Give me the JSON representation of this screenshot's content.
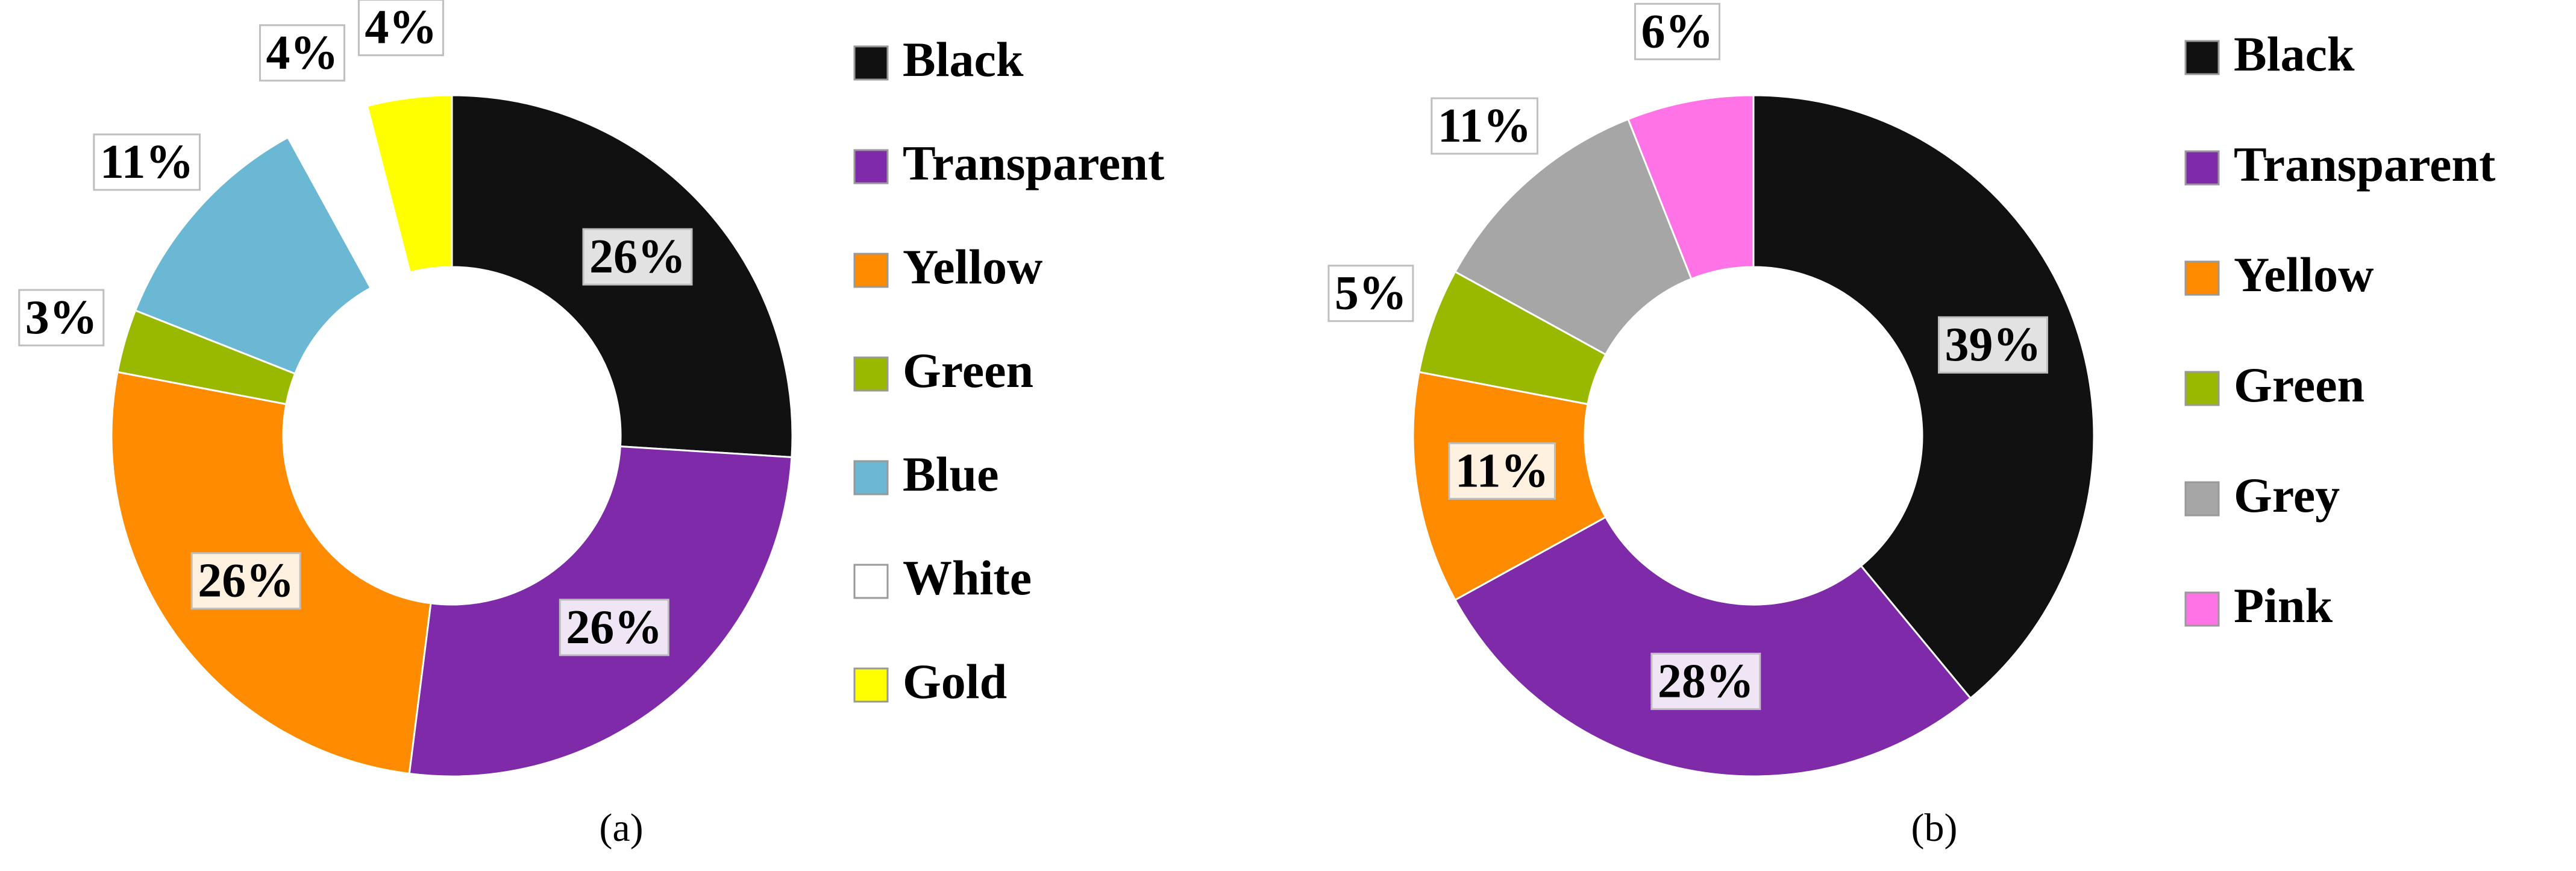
{
  "chart_data": [
    {
      "type": "pie",
      "donut": true,
      "caption": "(a)",
      "categories": [
        "Black",
        "Transparent",
        "Yellow",
        "Green",
        "Blue",
        "White",
        "Gold"
      ],
      "values": [
        26,
        26,
        26,
        3,
        11,
        4,
        4
      ],
      "value_labels": [
        "26%",
        "26%",
        "26%",
        "3%",
        "11%",
        "4%",
        "4%"
      ],
      "colors": [
        "#111111",
        "#7f2aa8",
        "#ff8c00",
        "#99b800",
        "#6bb8d4",
        "#ffffff",
        "#ffff00"
      ]
    },
    {
      "type": "pie",
      "donut": true,
      "caption": "(b)",
      "categories": [
        "Black",
        "Transparent",
        "Yellow",
        "Green",
        "Grey",
        "Pink"
      ],
      "values": [
        39,
        28,
        11,
        5,
        11,
        6
      ],
      "value_labels": [
        "39%",
        "28%",
        "11%",
        "5%",
        "11%",
        "6%"
      ],
      "colors": [
        "#111111",
        "#7f2aa8",
        "#ff8c00",
        "#99b800",
        "#a6a6a6",
        "#ff73e6"
      ]
    }
  ]
}
